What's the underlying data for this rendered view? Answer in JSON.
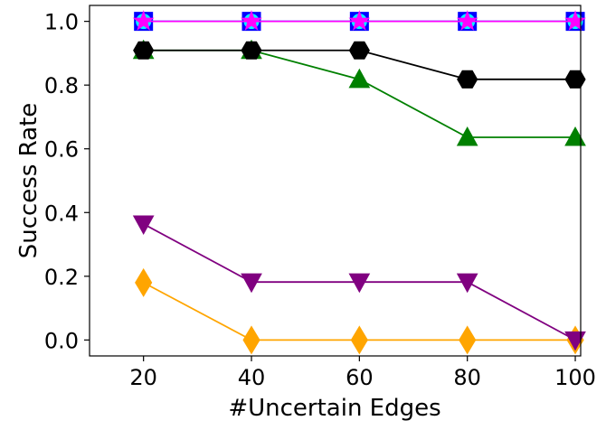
{
  "chart_data": {
    "type": "line",
    "xlabel": "#Uncertain Edges",
    "ylabel": "Success Rate",
    "x": [
      20,
      40,
      60,
      80,
      100
    ],
    "xlim": [
      10,
      101
    ],
    "ylim": [
      -0.05,
      1.05
    ],
    "xticks": [
      "20",
      "40",
      "60",
      "80",
      "100"
    ],
    "yticks": [
      "0.0",
      "0.2",
      "0.4",
      "0.6",
      "0.8",
      "1.0"
    ],
    "grid": false,
    "series": [
      {
        "color": "#ffa500",
        "marker": "diamond",
        "values": [
          0.18,
          0.0,
          0.0,
          0.0,
          0.0
        ]
      },
      {
        "color": "#800080",
        "marker": "triangle-down",
        "values": [
          0.364,
          0.182,
          0.182,
          0.182,
          0.0
        ]
      },
      {
        "color": "#008000",
        "marker": "triangle-up",
        "values": [
          0.909,
          0.909,
          0.818,
          0.636,
          0.636
        ]
      },
      {
        "color": "#000000",
        "marker": "hexagon",
        "values": [
          0.909,
          0.909,
          0.909,
          0.818,
          0.818
        ]
      },
      {
        "color": "#0000ff",
        "marker": "square",
        "values": [
          1.0,
          1.0,
          1.0,
          1.0,
          1.0
        ]
      },
      {
        "color": "#00ffff",
        "marker": "circle",
        "values": [
          1.0,
          1.0,
          1.0,
          1.0,
          1.0
        ]
      },
      {
        "color": "#ff00ff",
        "marker": "star",
        "values": [
          1.0,
          1.0,
          1.0,
          1.0,
          1.0
        ]
      }
    ]
  }
}
